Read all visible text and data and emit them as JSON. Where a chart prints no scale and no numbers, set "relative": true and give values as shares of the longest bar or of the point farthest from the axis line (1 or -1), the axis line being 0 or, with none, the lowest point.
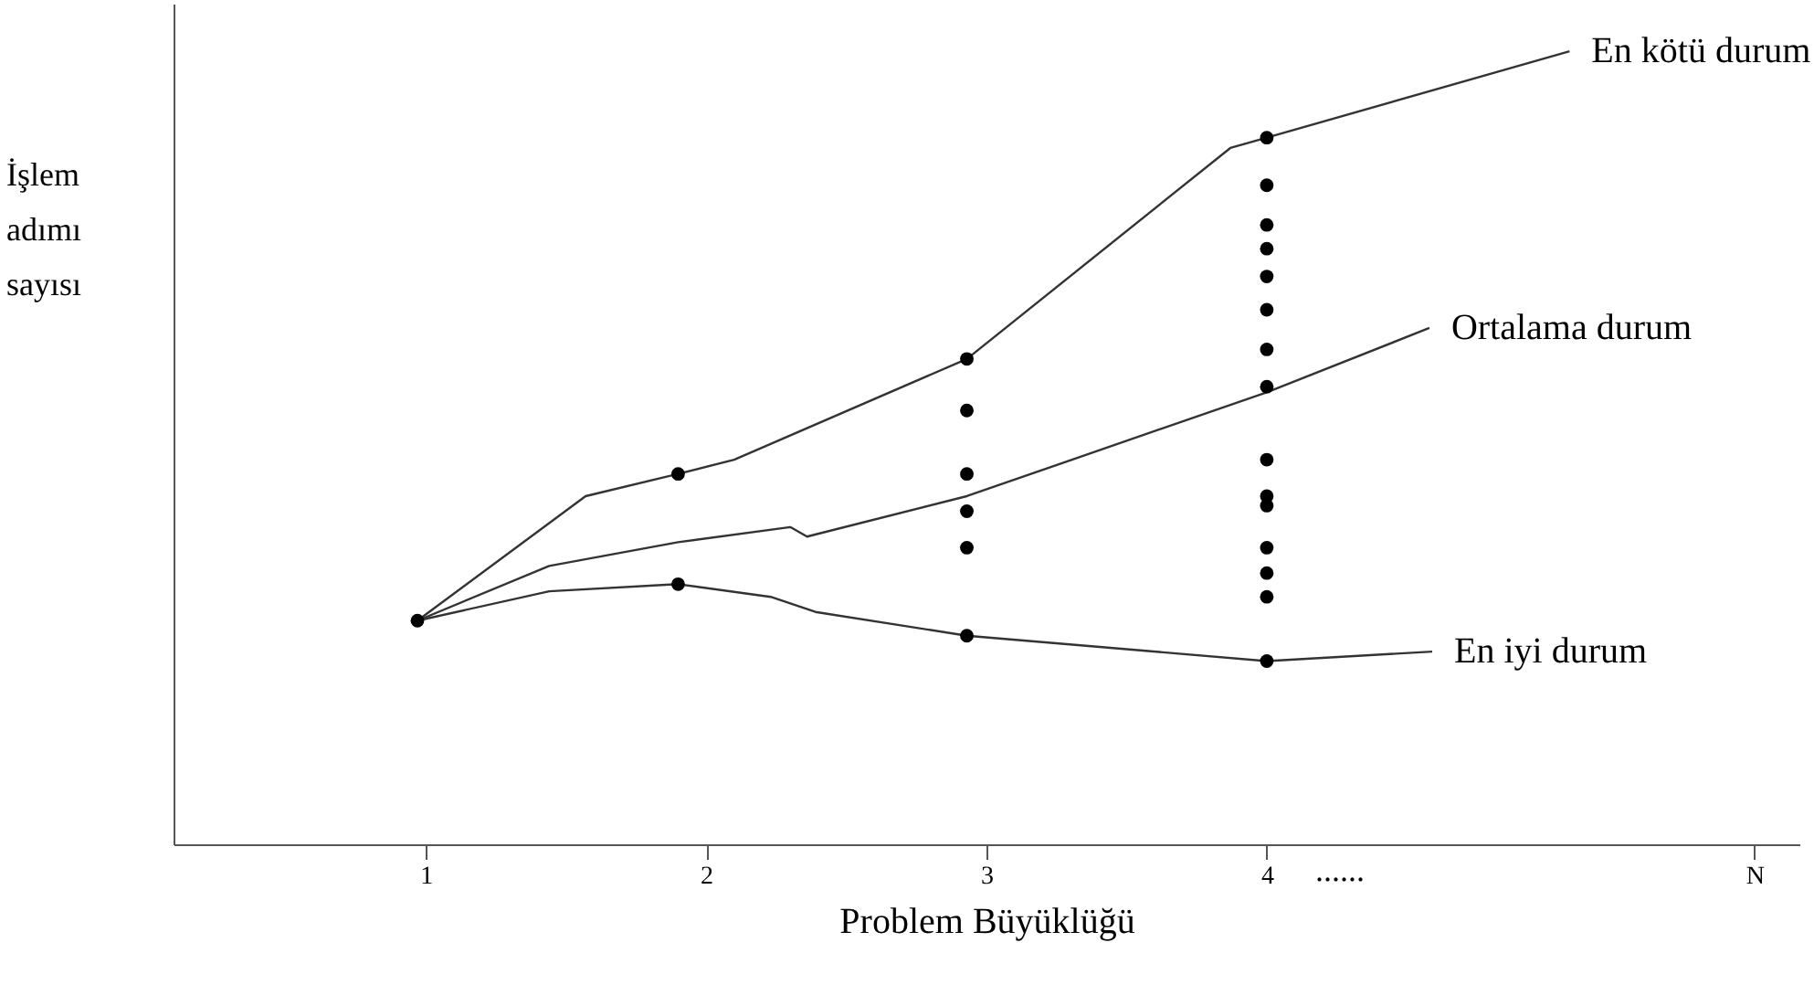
{
  "chart_data": {
    "type": "line",
    "xlabel": "Problem Büyüklüğü",
    "ylabel": "İşlem adımı sayısı",
    "relative": true,
    "xlim": [
      0.1,
      5.9
    ],
    "xticks": [
      1,
      2,
      3,
      4,
      {
        "value": 5.74,
        "label": "N"
      }
    ],
    "tick_labels": "x",
    "marker": "none",
    "line_style": "solid",
    "annotations": [
      "......"
    ],
    "series": [
      {
        "name": "En kötü durum",
        "color": "#333333",
        "x": [
          0.97,
          1.57,
          1.9,
          2.1,
          2.93,
          3.87,
          4.0,
          5.08
        ],
        "values": [
          0.282,
          0.439,
          0.467,
          0.485,
          0.612,
          0.878,
          0.891,
          1.0
        ]
      },
      {
        "name": "Ortalama durum",
        "color": "#333333",
        "x": [
          0.97,
          1.44,
          1.9,
          2.3,
          2.36,
          2.93,
          4.0,
          4.58
        ],
        "values": [
          0.282,
          0.351,
          0.381,
          0.4,
          0.388,
          0.439,
          0.57,
          0.651
        ]
      },
      {
        "name": "En iyi durum",
        "color": "#333333",
        "x": [
          0.97,
          1.44,
          1.9,
          2.23,
          2.39,
          2.93,
          4.0,
          4.59
        ],
        "values": [
          0.282,
          0.319,
          0.328,
          0.312,
          0.293,
          0.263,
          0.231,
          0.243
        ]
      },
      {
        "type": "scatter",
        "marker": "circle",
        "color": "#000000",
        "x": [
          0.97,
          1.9,
          1.9,
          2.93,
          2.93,
          2.93,
          2.93,
          2.93,
          2.93,
          4.0,
          4.0,
          4.0,
          4.0,
          4.0,
          4.0,
          4.0,
          4.0,
          4.0,
          4.0,
          4.0,
          4.0,
          4.0,
          4.0,
          4.0
        ],
        "values": [
          0.282,
          0.467,
          0.328,
          0.612,
          0.547,
          0.467,
          0.42,
          0.374,
          0.263,
          0.891,
          0.831,
          0.781,
          0.751,
          0.716,
          0.674,
          0.624,
          0.577,
          0.485,
          0.439,
          0.427,
          0.374,
          0.342,
          0.312,
          0.231
        ]
      }
    ]
  }
}
